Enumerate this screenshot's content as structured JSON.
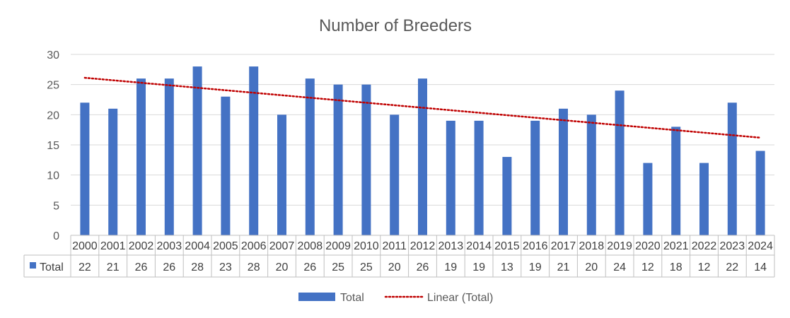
{
  "colors": {
    "bar": "#4472C4",
    "trendline": "#C00000",
    "grid": "#D9D9D9",
    "table_border": "#BFBFBF",
    "text": "#595959",
    "table_text": "#404040"
  },
  "chart_data": {
    "type": "bar",
    "title": "Number of Breeders",
    "xlabel": "",
    "ylabel": "",
    "ylim": [
      0,
      30
    ],
    "yticks": [
      0,
      5,
      10,
      15,
      20,
      25,
      30
    ],
    "grid": true,
    "legend_position": "bottom",
    "data_table": true,
    "categories": [
      "2000",
      "2001",
      "2002",
      "2003",
      "2004",
      "2005",
      "2006",
      "2007",
      "2008",
      "2009",
      "2010",
      "2011",
      "2012",
      "2013",
      "2014",
      "2015",
      "2016",
      "2017",
      "2018",
      "2019",
      "2020",
      "2021",
      "2022",
      "2023",
      "2024"
    ],
    "series": [
      {
        "name": "Total",
        "values": [
          22,
          21,
          26,
          26,
          28,
          23,
          28,
          20,
          26,
          25,
          25,
          20,
          26,
          19,
          19,
          13,
          19,
          21,
          20,
          24,
          12,
          18,
          12,
          22,
          14
        ]
      }
    ],
    "trendline": {
      "name": "Linear (Total)",
      "type": "linear",
      "series": "Total",
      "style": "dotted"
    },
    "legend": [
      "Total",
      "Linear (Total)"
    ]
  }
}
